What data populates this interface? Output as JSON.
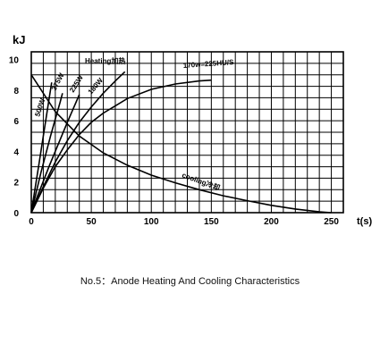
{
  "chart_data": {
    "type": "line",
    "ylabel": "kJ",
    "xlabel": "t(s)",
    "xlim": [
      0,
      250
    ],
    "ylim": [
      0,
      10
    ],
    "x_ticks": [
      0,
      50,
      100,
      150,
      200,
      250
    ],
    "y_ticks": [
      0,
      2,
      4,
      6,
      8,
      10
    ],
    "grid": true,
    "series": [
      {
        "name": "500W",
        "x": [
          0,
          3,
          6,
          9,
          12,
          15,
          17
        ],
        "y": [
          0,
          1.5,
          3.0,
          4.5,
          6.0,
          7.5,
          8.5
        ]
      },
      {
        "name": "375W",
        "x": [
          0,
          4,
          8,
          12,
          16,
          20,
          24,
          26
        ],
        "y": [
          0,
          1.3,
          2.6,
          3.8,
          5.0,
          6.1,
          7.2,
          7.8
        ]
      },
      {
        "name": "225W",
        "x": [
          0,
          5,
          10,
          15,
          20,
          25,
          30,
          35,
          40
        ],
        "y": [
          0,
          1.05,
          2.05,
          3.05,
          4.0,
          4.95,
          5.9,
          6.8,
          7.7
        ]
      },
      {
        "name": "180W",
        "x": [
          0,
          10,
          20,
          30,
          40,
          50,
          60,
          70,
          78
        ],
        "y": [
          0,
          1.7,
          3.3,
          4.7,
          5.9,
          6.9,
          7.8,
          8.6,
          9.2
        ]
      },
      {
        "name": "170w=225HU/S",
        "x": [
          0,
          10,
          20,
          30,
          40,
          50,
          60,
          80,
          100,
          120,
          140,
          150
        ],
        "y": [
          0,
          1.6,
          3.0,
          4.1,
          5.1,
          5.9,
          6.5,
          7.45,
          8.05,
          8.4,
          8.6,
          8.65
        ]
      },
      {
        "name": "cooling冷却",
        "x": [
          0,
          20,
          40,
          60,
          80,
          100,
          120,
          140,
          160,
          180,
          200,
          220,
          240,
          250
        ],
        "y": [
          9.0,
          6.6,
          5.0,
          3.9,
          3.1,
          2.45,
          1.95,
          1.5,
          1.1,
          0.78,
          0.48,
          0.24,
          0.05,
          0
        ]
      }
    ],
    "annotations": [
      {
        "text": "Heating加热"
      },
      {
        "text": "170w=225HU/S"
      },
      {
        "text": "cooling冷却"
      },
      {
        "text": "500W"
      },
      {
        "text": "375W"
      },
      {
        "text": "225W"
      },
      {
        "text": "180W"
      }
    ],
    "caption": "No.5：Anode Heating And Cooling Characteristics"
  }
}
